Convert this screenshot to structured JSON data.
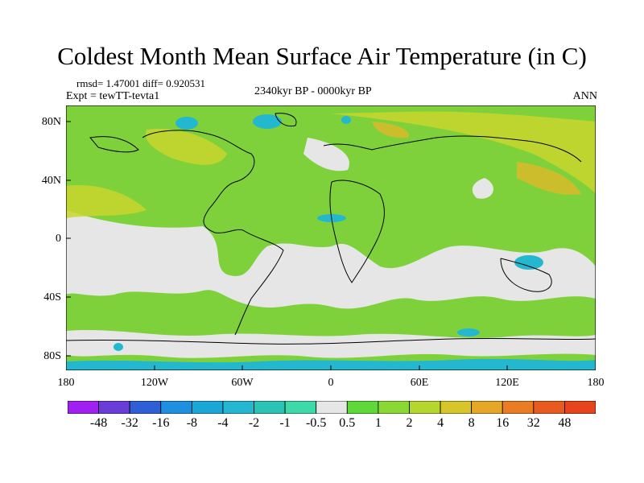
{
  "title": "Coldest Month Mean Surface Air Temperature (in C)",
  "stats": "rmsd= 1.47001 diff= 0.920531",
  "experiment": "Expt = tewTT-tevta1",
  "period": "2340kyr BP - 0000kyr BP",
  "season": "ANN",
  "map": {
    "projection": "cylindrical equidistant",
    "lon_labels": [
      "180",
      "120W",
      "60W",
      "0",
      "60E",
      "120E",
      "180"
    ],
    "lat_labels": [
      "80N",
      "40N",
      "0",
      "40S",
      "80S"
    ],
    "background_color": "#7fd13b"
  },
  "colorbar": {
    "labels": [
      "-48",
      "-32",
      "-16",
      "-8",
      "-4",
      "-2",
      "-1",
      "-0.5",
      "0.5",
      "1",
      "2",
      "4",
      "8",
      "16",
      "32",
      "48"
    ],
    "colors": [
      "#a020f0",
      "#6a3cd8",
      "#2f5fd6",
      "#1f8fe0",
      "#1aa7d6",
      "#23b8cf",
      "#2ac3b4",
      "#3dd9a9",
      "#e6e6e6",
      "#5fd93a",
      "#8ad834",
      "#b4d62f",
      "#d8c52a",
      "#e6a626",
      "#ea7d24",
      "#e85a1f",
      "#e6441c"
    ]
  }
}
